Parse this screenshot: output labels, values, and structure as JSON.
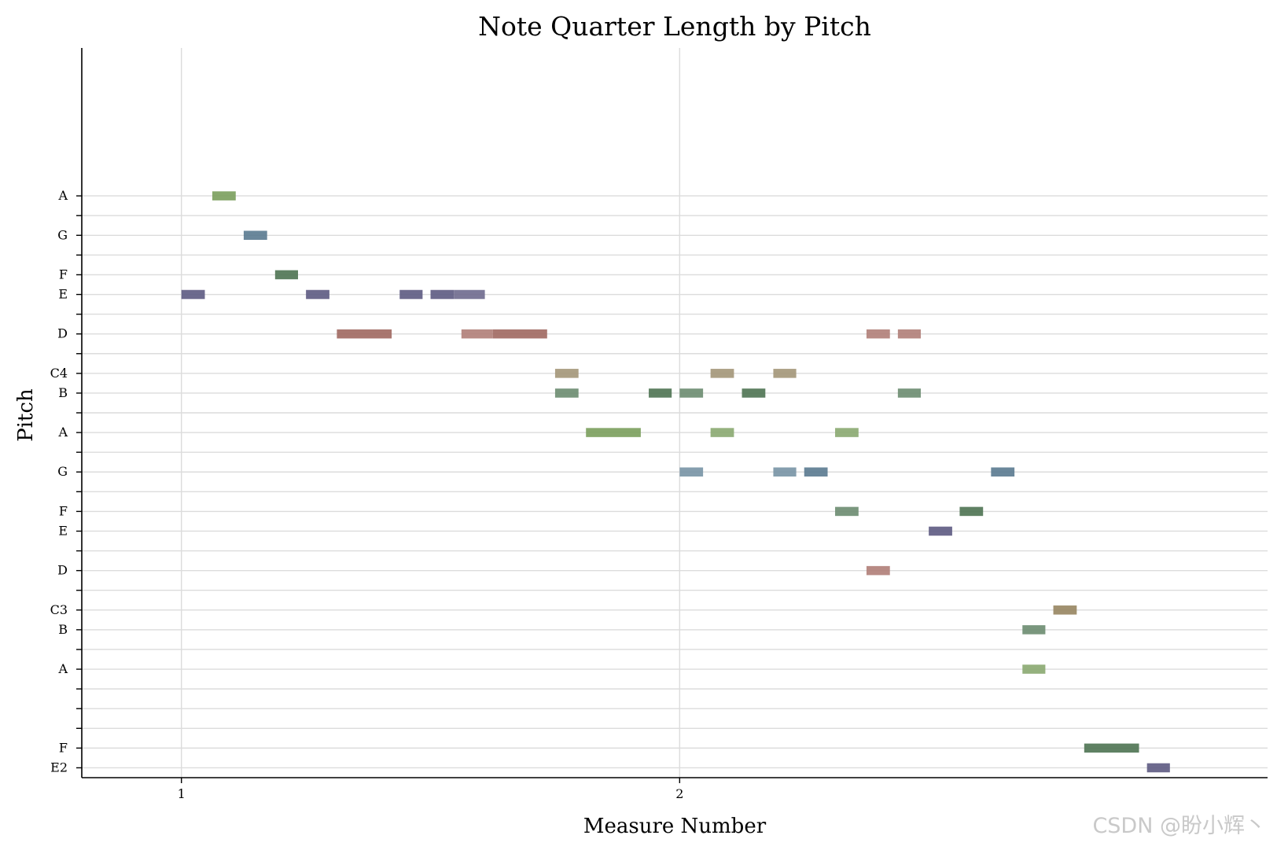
{
  "chart_data": {
    "type": "piano-roll",
    "title": "Note Quarter Length by Pitch",
    "xlabel": "Measure Number",
    "ylabel": "Pitch",
    "xlim": [
      0.8,
      3.18
    ],
    "x_ticks": [
      {
        "value": 1,
        "label": "1"
      },
      {
        "value": 2,
        "label": "2"
      }
    ],
    "ylim": [
      39.5,
      76.5
    ],
    "pitch_rows": [
      {
        "midi": 40,
        "label": "E2"
      },
      {
        "midi": 41,
        "label": "F"
      },
      {
        "midi": 42,
        "label": ""
      },
      {
        "midi": 43,
        "label": ""
      },
      {
        "midi": 44,
        "label": ""
      },
      {
        "midi": 45,
        "label": "A"
      },
      {
        "midi": 46,
        "label": ""
      },
      {
        "midi": 47,
        "label": "B"
      },
      {
        "midi": 48,
        "label": "C3"
      },
      {
        "midi": 49,
        "label": ""
      },
      {
        "midi": 50,
        "label": "D"
      },
      {
        "midi": 51,
        "label": ""
      },
      {
        "midi": 52,
        "label": "E"
      },
      {
        "midi": 53,
        "label": "F"
      },
      {
        "midi": 54,
        "label": ""
      },
      {
        "midi": 55,
        "label": "G"
      },
      {
        "midi": 56,
        "label": ""
      },
      {
        "midi": 57,
        "label": "A"
      },
      {
        "midi": 58,
        "label": ""
      },
      {
        "midi": 59,
        "label": "B"
      },
      {
        "midi": 60,
        "label": "C4"
      },
      {
        "midi": 61,
        "label": ""
      },
      {
        "midi": 62,
        "label": "D"
      },
      {
        "midi": 63,
        "label": ""
      },
      {
        "midi": 64,
        "label": "E"
      },
      {
        "midi": 65,
        "label": "F"
      },
      {
        "midi": 66,
        "label": ""
      },
      {
        "midi": 67,
        "label": "G"
      },
      {
        "midi": 68,
        "label": ""
      },
      {
        "midi": 69,
        "label": "A"
      }
    ],
    "grid": true,
    "notes": [
      {
        "start": 1.0,
        "end": 1.047,
        "pitch": 64,
        "color": "#5d5a82"
      },
      {
        "start": 1.062,
        "end": 1.109,
        "pitch": 69,
        "color": "#7a9e5c"
      },
      {
        "start": 1.125,
        "end": 1.172,
        "pitch": 67,
        "color": "#5a7a90"
      },
      {
        "start": 1.188,
        "end": 1.234,
        "pitch": 65,
        "color": "#4e7352"
      },
      {
        "start": 1.25,
        "end": 1.297,
        "pitch": 64,
        "color": "#5d5a82"
      },
      {
        "start": 1.312,
        "end": 1.422,
        "pitch": 62,
        "color": "#a06860"
      },
      {
        "start": 1.438,
        "end": 1.484,
        "pitch": 64,
        "color": "#5d5a82"
      },
      {
        "start": 1.5,
        "end": 1.547,
        "pitch": 64,
        "color": "#5d5a82"
      },
      {
        "start": 1.547,
        "end": 1.609,
        "pitch": 64,
        "color": "#6e6a8e"
      },
      {
        "start": 1.562,
        "end": 1.625,
        "pitch": 62,
        "color": "#b07e78"
      },
      {
        "start": 1.625,
        "end": 1.734,
        "pitch": 62,
        "color": "#a06860"
      },
      {
        "start": 1.75,
        "end": 1.797,
        "pitch": 60,
        "color": "#a39678"
      },
      {
        "start": 1.75,
        "end": 1.797,
        "pitch": 59,
        "color": "#6b8c70"
      },
      {
        "start": 1.812,
        "end": 1.922,
        "pitch": 57,
        "color": "#7a9e5c"
      },
      {
        "start": 1.938,
        "end": 1.984,
        "pitch": 59,
        "color": "#4e7352"
      },
      {
        "start": 2.0,
        "end": 2.047,
        "pitch": 59,
        "color": "#6b8c70"
      },
      {
        "start": 2.0,
        "end": 2.047,
        "pitch": 55,
        "color": "#7893a5"
      },
      {
        "start": 2.062,
        "end": 2.109,
        "pitch": 60,
        "color": "#a39678"
      },
      {
        "start": 2.062,
        "end": 2.109,
        "pitch": 57,
        "color": "#8aa870"
      },
      {
        "start": 2.125,
        "end": 2.172,
        "pitch": 59,
        "color": "#4e7352"
      },
      {
        "start": 2.188,
        "end": 2.234,
        "pitch": 60,
        "color": "#a39678"
      },
      {
        "start": 2.188,
        "end": 2.234,
        "pitch": 55,
        "color": "#7893a5"
      },
      {
        "start": 2.25,
        "end": 2.297,
        "pitch": 55,
        "color": "#5a7a90"
      },
      {
        "start": 2.312,
        "end": 2.359,
        "pitch": 57,
        "color": "#8aa870"
      },
      {
        "start": 2.312,
        "end": 2.359,
        "pitch": 53,
        "color": "#6b8c70"
      },
      {
        "start": 2.375,
        "end": 2.422,
        "pitch": 62,
        "color": "#b07e78"
      },
      {
        "start": 2.375,
        "end": 2.422,
        "pitch": 50,
        "color": "#b07e78"
      },
      {
        "start": 2.438,
        "end": 2.484,
        "pitch": 62,
        "color": "#b07e78"
      },
      {
        "start": 2.438,
        "end": 2.484,
        "pitch": 59,
        "color": "#6b8c70"
      },
      {
        "start": 2.5,
        "end": 2.547,
        "pitch": 52,
        "color": "#5d5a82"
      },
      {
        "start": 2.562,
        "end": 2.609,
        "pitch": 53,
        "color": "#4e7352"
      },
      {
        "start": 2.625,
        "end": 2.672,
        "pitch": 55,
        "color": "#5a7a90"
      },
      {
        "start": 2.688,
        "end": 2.734,
        "pitch": 47,
        "color": "#6b8c70"
      },
      {
        "start": 2.688,
        "end": 2.734,
        "pitch": 45,
        "color": "#8aa870"
      },
      {
        "start": 2.75,
        "end": 2.797,
        "pitch": 48,
        "color": "#978560"
      },
      {
        "start": 2.812,
        "end": 2.922,
        "pitch": 41,
        "color": "#4e7352"
      },
      {
        "start": 2.938,
        "end": 2.984,
        "pitch": 40,
        "color": "#5d5a82"
      }
    ]
  },
  "watermark": "CSDN @盼小辉丶"
}
